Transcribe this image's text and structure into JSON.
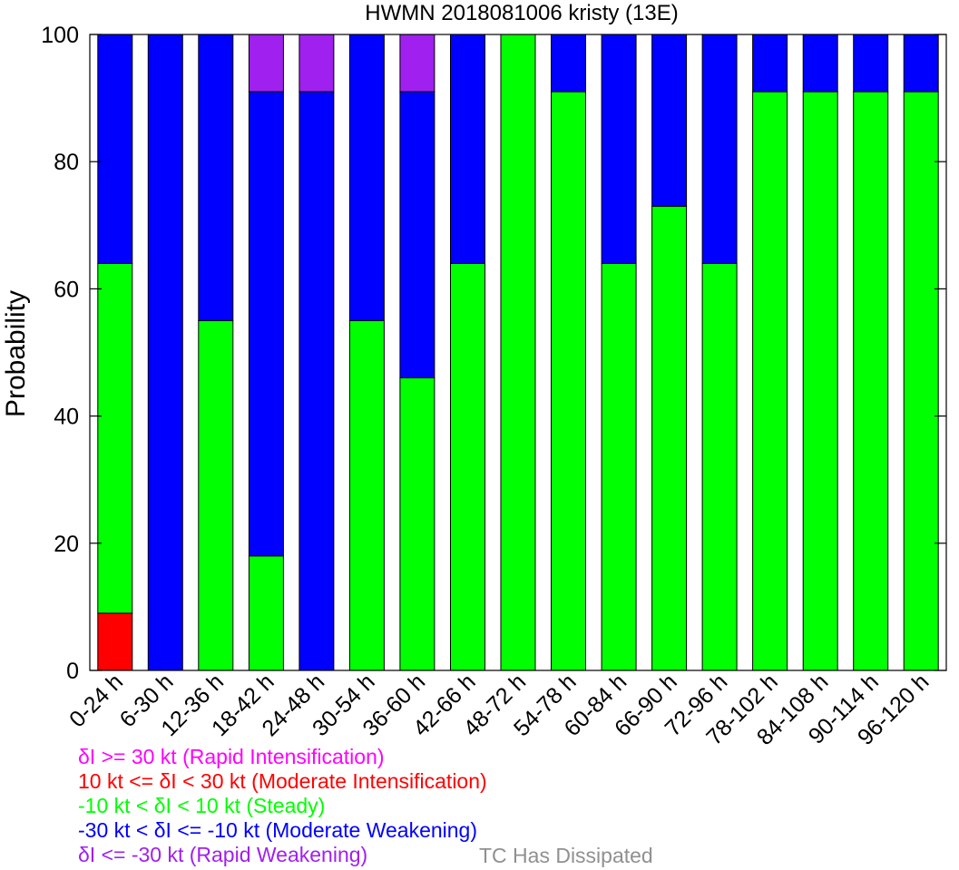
{
  "chart_data": {
    "type": "bar",
    "stacked": true,
    "title": "HWMN 2018081006 kristy (13E)",
    "ylabel": "Probability",
    "xlabel": "",
    "ylim": [
      0,
      100
    ],
    "yticks": [
      0,
      20,
      40,
      60,
      80,
      100
    ],
    "grid": false,
    "categories": [
      "0-24 h",
      "6-30 h",
      "12-36 h",
      "18-42 h",
      "24-48 h",
      "30-54 h",
      "36-60 h",
      "42-66 h",
      "48-72 h",
      "54-78 h",
      "60-84 h",
      "66-90 h",
      "72-96 h",
      "78-102 h",
      "84-108 h",
      "90-114 h",
      "96-120 h"
    ],
    "series": [
      {
        "key": "rw",
        "color": "#a020f0",
        "values": [
          0,
          0,
          0,
          9,
          9,
          0,
          9,
          0,
          0,
          0,
          0,
          0,
          0,
          0,
          0,
          0,
          0
        ]
      },
      {
        "key": "mw",
        "color": "#0000ff",
        "values": [
          36,
          100,
          45,
          73,
          91,
          45,
          45,
          36,
          0,
          9,
          36,
          27,
          36,
          9,
          9,
          9,
          9
        ]
      },
      {
        "key": "st",
        "color": "#00ff00",
        "values": [
          55,
          0,
          55,
          18,
          0,
          55,
          46,
          64,
          100,
          91,
          64,
          73,
          64,
          91,
          91,
          91,
          91
        ]
      },
      {
        "key": "mi",
        "color": "#ff0000",
        "values": [
          9,
          0,
          0,
          0,
          0,
          0,
          0,
          0,
          0,
          0,
          0,
          0,
          0,
          0,
          0,
          0,
          0
        ]
      },
      {
        "key": "ri",
        "color": "#ff00ff",
        "values": [
          0,
          0,
          0,
          0,
          0,
          0,
          0,
          0,
          0,
          0,
          0,
          0,
          0,
          0,
          0,
          0,
          0
        ]
      }
    ],
    "legend": {
      "placement": "bottom-left",
      "entries": [
        {
          "text": "δI >= 30 kt (Rapid Intensification)",
          "color": "#ff00ff"
        },
        {
          "text": "10 kt <= δI < 30 kt (Moderate Intensification)",
          "color": "#ff0000"
        },
        {
          "text": "-10 kt < δI < 10 kt (Steady)",
          "color": "#00ff00"
        },
        {
          "text": "-30 kt < δI <= -10 kt (Moderate Weakening)",
          "color": "#0000ff"
        },
        {
          "text": "δI <= -30 kt (Rapid Weakening)",
          "color": "#a020f0"
        }
      ],
      "extra": {
        "text": "TC Has Dissipated",
        "color": "#909090"
      }
    }
  }
}
